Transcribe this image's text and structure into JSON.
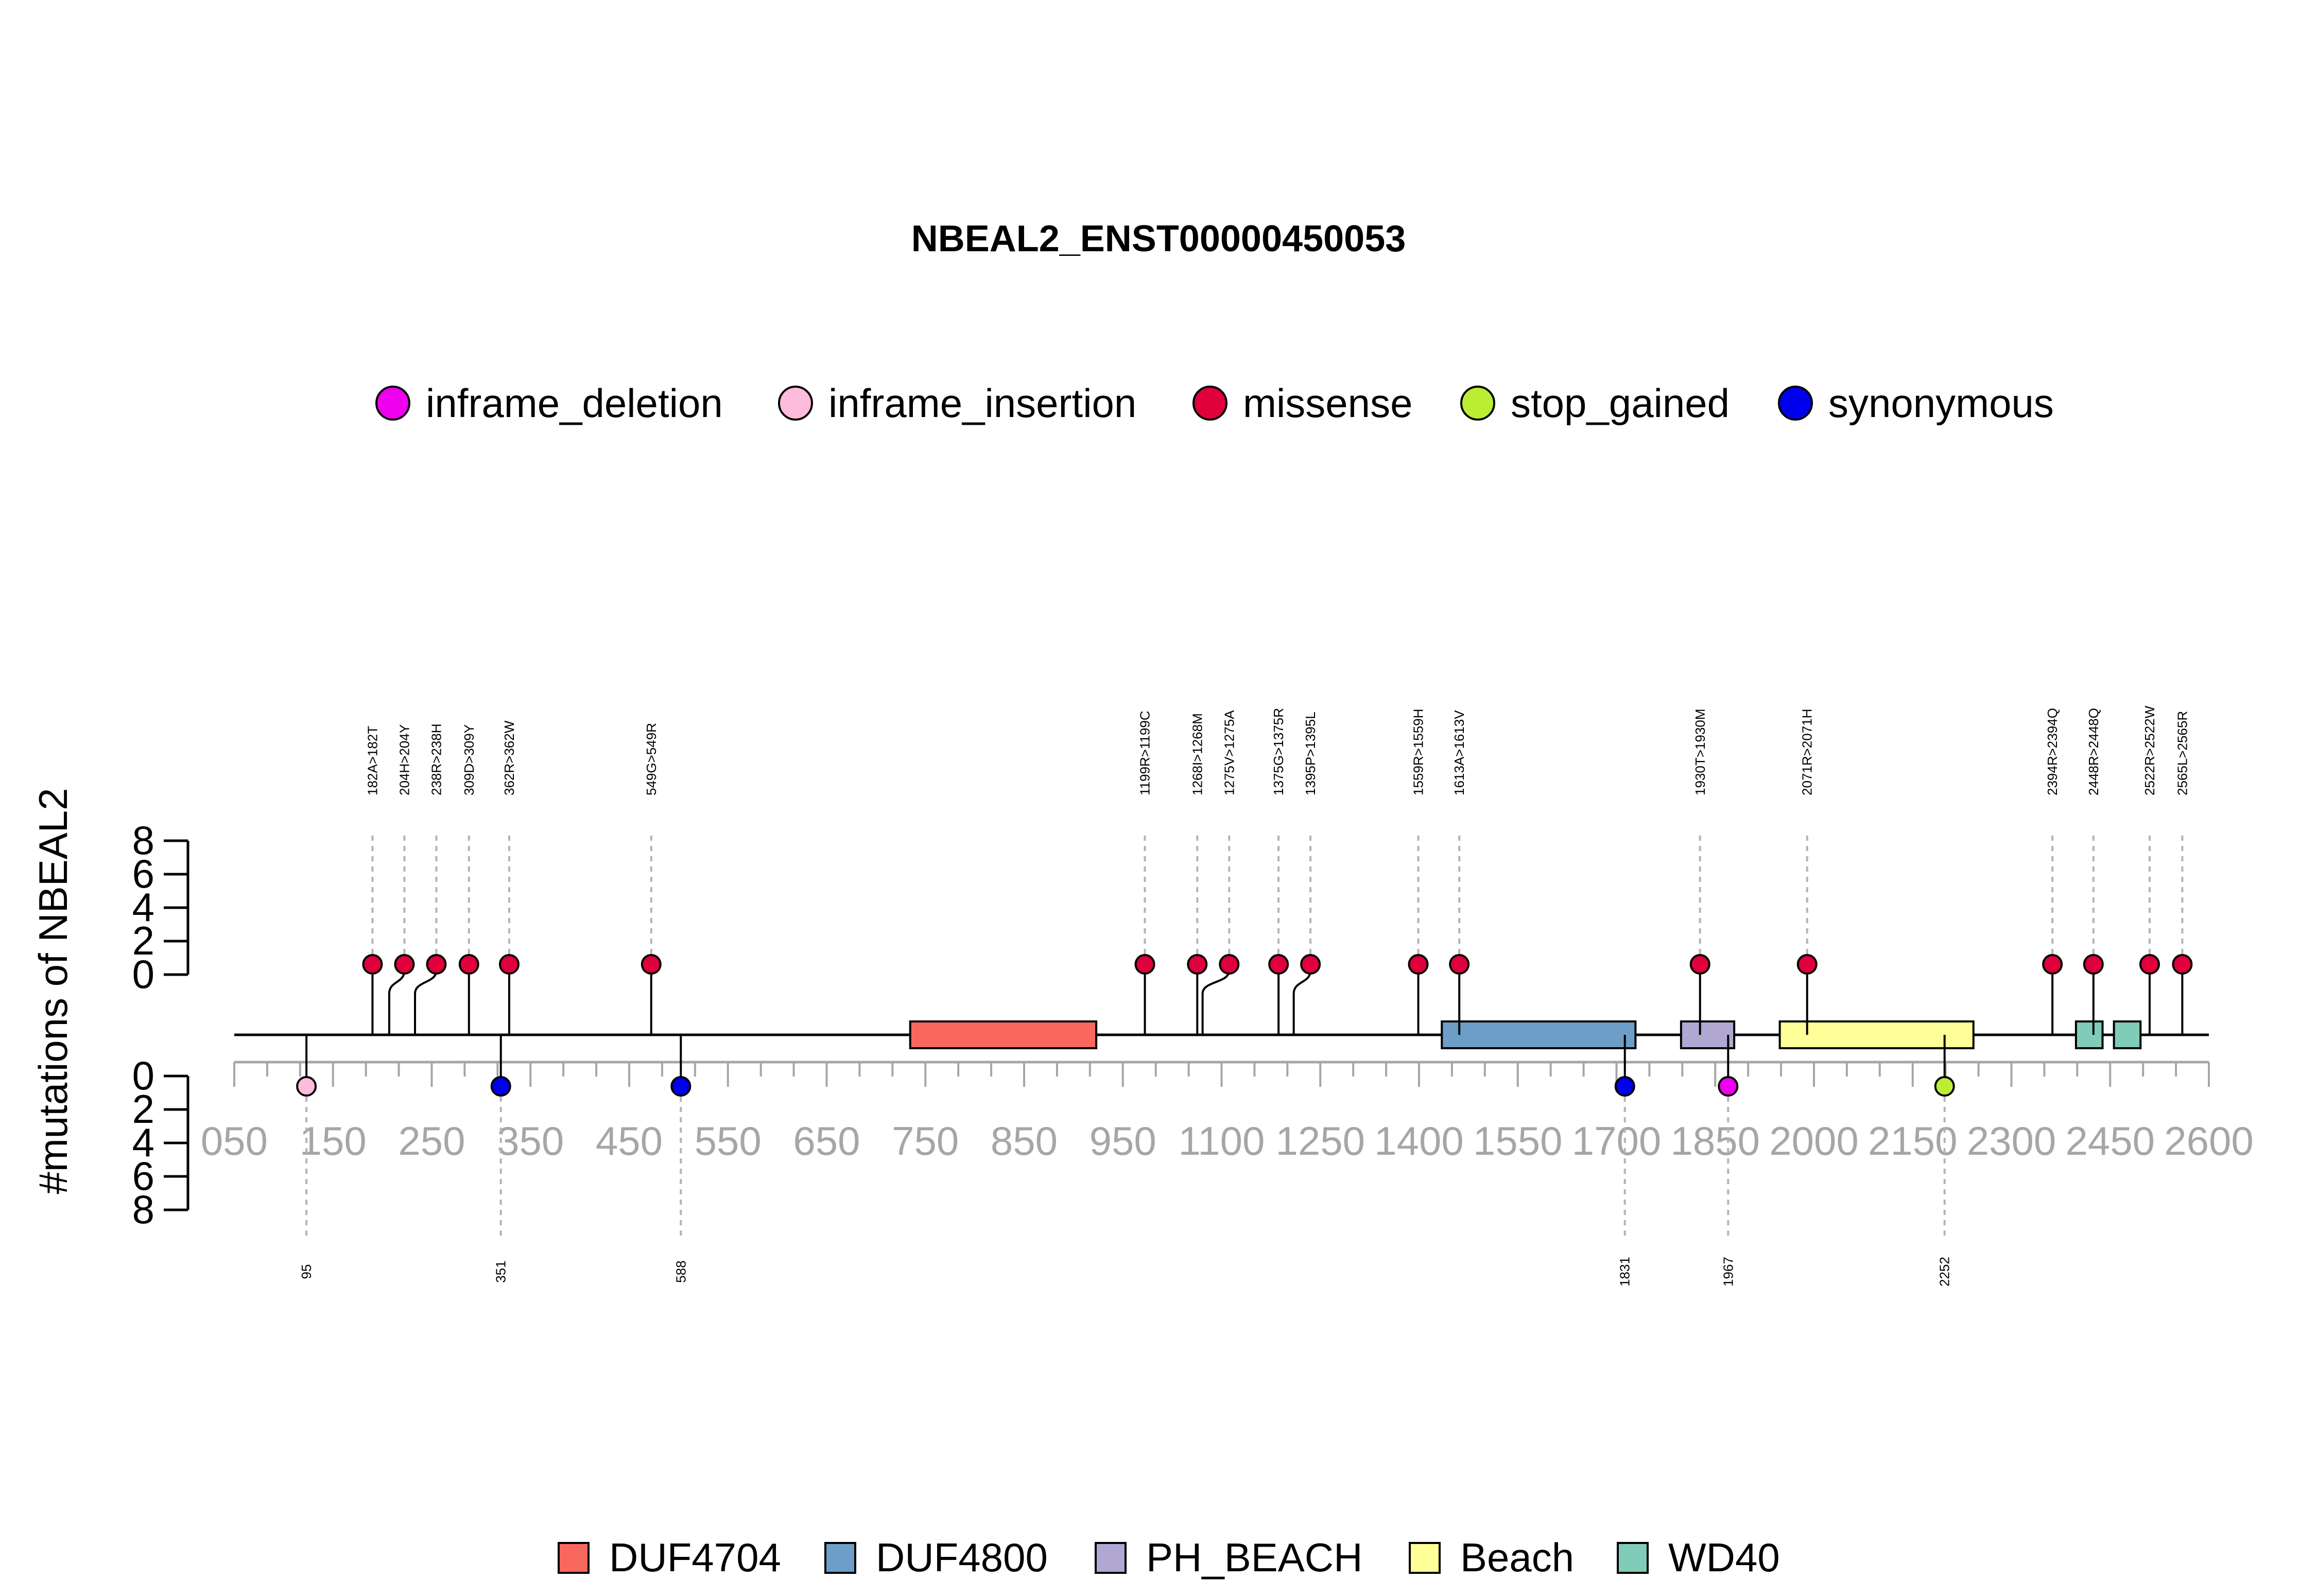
{
  "chart_data": {
    "type": "lollipop",
    "title": "NBEAL2_ENST00000450053",
    "ylabel": "#mutations of NBEAL2",
    "y_ticks_top": [
      "8",
      "6",
      "4",
      "2",
      "0"
    ],
    "y_ticks_bottom": [
      "0",
      "2",
      "4",
      "6",
      "8"
    ],
    "x_tick_labels": [
      "050",
      "150",
      "250",
      "350",
      "450",
      "550",
      "650",
      "750",
      "850",
      "950",
      "1100",
      "1250",
      "1400",
      "1550",
      "1700",
      "1850",
      "2000",
      "2150",
      "2300",
      "2450",
      "2600"
    ],
    "mutation_legend": [
      {
        "name": "inframe_deletion",
        "color": "#ee00ee"
      },
      {
        "name": "inframe_insertion",
        "color": "#ffbbdd"
      },
      {
        "name": "missense",
        "color": "#e0003c"
      },
      {
        "name": "stop_gained",
        "color": "#bbee33"
      },
      {
        "name": "synonymous",
        "color": "#0000ee"
      }
    ],
    "domain_legend": [
      {
        "name": "DUF4704",
        "color": "#f8685e"
      },
      {
        "name": "DUF4800",
        "color": "#6c9ec8"
      },
      {
        "name": "PH_BEACH",
        "color": "#b0a8d2"
      },
      {
        "name": "Beach",
        "color": "#ffff99"
      },
      {
        "name": "WD40",
        "color": "#80ccb8"
      }
    ],
    "domains": [
      {
        "name": "DUF4704",
        "start": 890,
        "end": 1135
      },
      {
        "name": "DUF4800",
        "start": 1590,
        "end": 1845
      },
      {
        "name": "PH_BEACH",
        "start": 1905,
        "end": 1975
      },
      {
        "name": "Beach",
        "start": 2035,
        "end": 2290
      },
      {
        "name": "WD40",
        "start": 2425,
        "end": 2460
      },
      {
        "name": "WD40",
        "start": 2475,
        "end": 2510
      }
    ],
    "top_mutations": [
      {
        "label": "182A>182T",
        "pos": 182,
        "count": 1,
        "type": "missense"
      },
      {
        "label": "204H>204Y",
        "pos": 204,
        "count": 1,
        "type": "missense"
      },
      {
        "label": "238R>238H",
        "pos": 238,
        "count": 1,
        "type": "missense"
      },
      {
        "label": "309D>309Y",
        "pos": 309,
        "count": 1,
        "type": "missense"
      },
      {
        "label": "362R>362W",
        "pos": 362,
        "count": 1,
        "type": "missense"
      },
      {
        "label": "549G>549R",
        "pos": 549,
        "count": 1,
        "type": "missense"
      },
      {
        "label": "1199R>1199C",
        "pos": 1199,
        "count": 1,
        "type": "missense"
      },
      {
        "label": "1268I>1268M",
        "pos": 1268,
        "count": 1,
        "type": "missense"
      },
      {
        "label": "1275V>1275A",
        "pos": 1275,
        "count": 1,
        "type": "missense"
      },
      {
        "label": "1375G>1375R",
        "pos": 1375,
        "count": 1,
        "type": "missense"
      },
      {
        "label": "1395P>1395L",
        "pos": 1395,
        "count": 1,
        "type": "missense"
      },
      {
        "label": "1559R>1559H",
        "pos": 1559,
        "count": 1,
        "type": "missense"
      },
      {
        "label": "1613A>1613V",
        "pos": 1613,
        "count": 1,
        "type": "missense"
      },
      {
        "label": "1930T>1930M",
        "pos": 1930,
        "count": 1,
        "type": "missense"
      },
      {
        "label": "2071R>2071H",
        "pos": 2071,
        "count": 1,
        "type": "missense"
      },
      {
        "label": "2394R>2394Q",
        "pos": 2394,
        "count": 1,
        "type": "missense"
      },
      {
        "label": "2448R>2448Q",
        "pos": 2448,
        "count": 1,
        "type": "missense"
      },
      {
        "label": "2522R>2522W",
        "pos": 2522,
        "count": 1,
        "type": "missense"
      },
      {
        "label": "2565L>2565R",
        "pos": 2565,
        "count": 1,
        "type": "missense"
      }
    ],
    "bottom_mutations": [
      {
        "label": "95",
        "pos": 95,
        "count": 1,
        "type": "inframe_insertion"
      },
      {
        "label": "351",
        "pos": 351,
        "count": 1,
        "type": "synonymous"
      },
      {
        "label": "588",
        "pos": 588,
        "count": 1,
        "type": "synonymous"
      },
      {
        "label": "1831",
        "pos": 1831,
        "count": 1,
        "type": "synonymous"
      },
      {
        "label": "1967",
        "pos": 1967,
        "count": 1,
        "type": "inframe_deletion"
      },
      {
        "label": "2252",
        "pos": 2252,
        "count": 1,
        "type": "stop_gained"
      }
    ],
    "protein_length": 2600
  }
}
